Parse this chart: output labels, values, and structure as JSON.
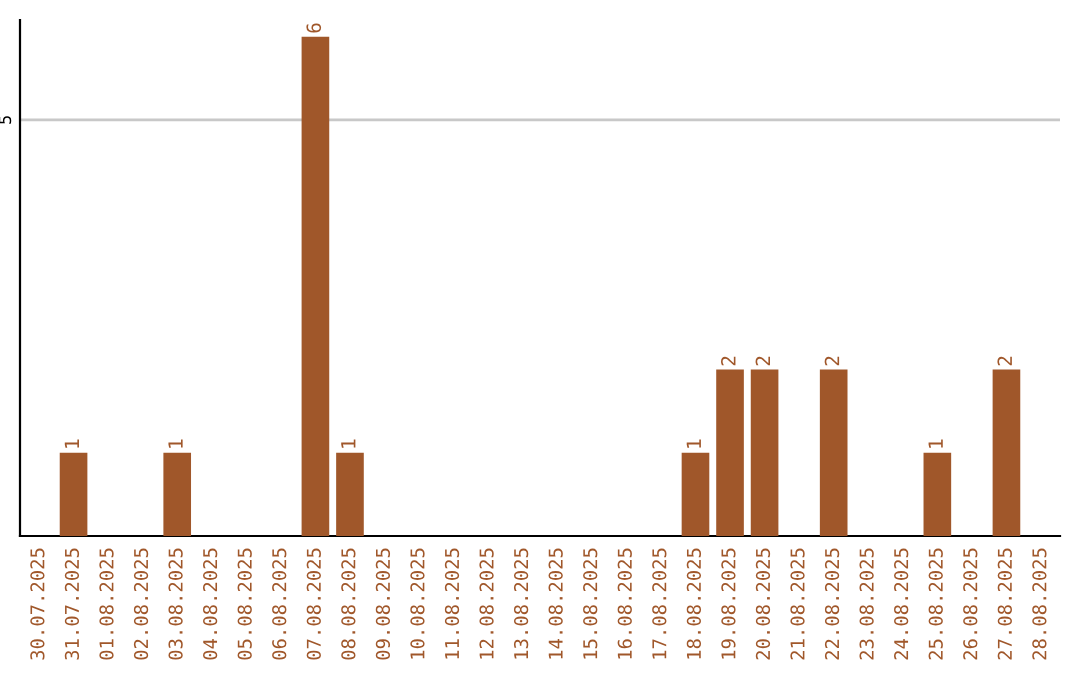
{
  "chart_data": {
    "type": "bar",
    "categories": [
      "30.07.2025",
      "31.07.2025",
      "01.08.2025",
      "02.08.2025",
      "03.08.2025",
      "04.08.2025",
      "05.08.2025",
      "06.08.2025",
      "07.08.2025",
      "08.08.2025",
      "09.08.2025",
      "10.08.2025",
      "11.08.2025",
      "12.08.2025",
      "13.08.2025",
      "14.08.2025",
      "15.08.2025",
      "16.08.2025",
      "17.08.2025",
      "18.08.2025",
      "19.08.2025",
      "20.08.2025",
      "21.08.2025",
      "22.08.2025",
      "23.08.2025",
      "24.08.2025",
      "25.08.2025",
      "26.08.2025",
      "27.08.2025",
      "28.08.2025"
    ],
    "values": [
      0,
      1,
      0,
      0,
      1,
      0,
      0,
      0,
      6,
      1,
      0,
      0,
      0,
      0,
      0,
      0,
      0,
      0,
      0,
      1,
      2,
      2,
      0,
      2,
      0,
      0,
      1,
      0,
      2,
      0
    ],
    "value_labels": [
      null,
      "1",
      null,
      null,
      "1",
      null,
      null,
      null,
      "6",
      "1",
      null,
      null,
      null,
      null,
      null,
      null,
      null,
      null,
      null,
      "1",
      "2",
      "2",
      null,
      "2",
      null,
      null,
      "1",
      null,
      "2",
      null
    ],
    "color": "#a0572a",
    "ylim": [
      0,
      6.2
    ],
    "yticks": [
      5
    ],
    "grid": "y",
    "legend": false
  }
}
